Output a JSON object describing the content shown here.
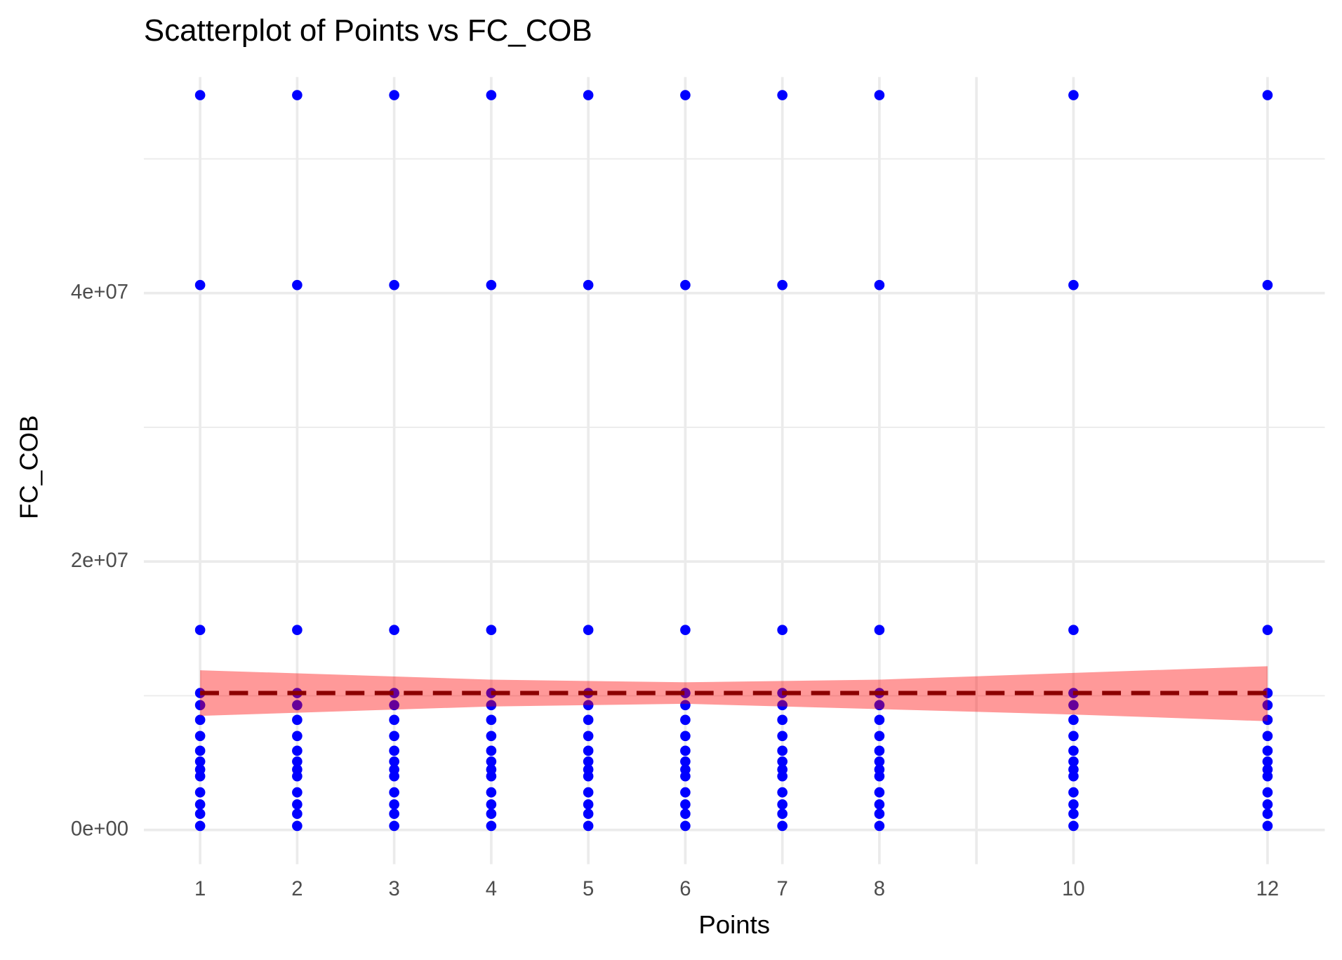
{
  "chart_data": {
    "type": "scatter",
    "title": "Scatterplot of Points vs  FC_COB",
    "x_label": "Points",
    "y_label": "FC_COB",
    "xlim": [
      0.42,
      12.59
    ],
    "ylim": [
      -2550000,
      56100000
    ],
    "xticks": [
      1,
      2,
      3,
      4,
      5,
      6,
      7,
      8,
      10,
      12
    ],
    "x_minor_grid": [
      9
    ],
    "yticks": [
      {
        "value": 0,
        "label": "0e+00"
      },
      {
        "value": 20000000,
        "label": "2e+07"
      },
      {
        "value": 40000000,
        "label": "4e+07"
      }
    ],
    "y_minor_grid": [
      10000000,
      30000000,
      50000000
    ],
    "grid": true,
    "series": [
      {
        "color": "#0000ff",
        "x": [
          1,
          1,
          1,
          1,
          1,
          1,
          1,
          1,
          1,
          1,
          1,
          1,
          1,
          1,
          1,
          2,
          2,
          2,
          2,
          2,
          2,
          2,
          2,
          2,
          2,
          2,
          2,
          2,
          2,
          2,
          3,
          3,
          3,
          3,
          3,
          3,
          3,
          3,
          3,
          3,
          3,
          3,
          3,
          3,
          3,
          4,
          4,
          4,
          4,
          4,
          4,
          4,
          4,
          4,
          4,
          4,
          4,
          4,
          4,
          4,
          5,
          5,
          5,
          5,
          5,
          5,
          5,
          5,
          5,
          5,
          5,
          5,
          5,
          5,
          5,
          6,
          6,
          6,
          6,
          6,
          6,
          6,
          6,
          6,
          6,
          6,
          6,
          6,
          6,
          6,
          7,
          7,
          7,
          7,
          7,
          7,
          7,
          7,
          7,
          7,
          7,
          7,
          7,
          7,
          7,
          8,
          8,
          8,
          8,
          8,
          8,
          8,
          8,
          8,
          8,
          8,
          8,
          8,
          8,
          8,
          10,
          10,
          10,
          10,
          10,
          10,
          10,
          10,
          10,
          10,
          10,
          10,
          10,
          10,
          10,
          12,
          12,
          12,
          12,
          12,
          12,
          12,
          12,
          12,
          12,
          12,
          12,
          12,
          12,
          12
        ],
        "values": [
          54750000,
          40600000,
          14900000,
          10200000,
          9300000,
          8200000,
          7000000,
          5900000,
          5100000,
          4500000,
          4000000,
          2800000,
          1900000,
          1200000,
          300000,
          54750000,
          40600000,
          14900000,
          10200000,
          9300000,
          8200000,
          7000000,
          5900000,
          5100000,
          4500000,
          4000000,
          2800000,
          1900000,
          1200000,
          300000,
          54750000,
          40600000,
          14900000,
          10200000,
          9300000,
          8200000,
          7000000,
          5900000,
          5100000,
          4500000,
          4000000,
          2800000,
          1900000,
          1200000,
          300000,
          54750000,
          40600000,
          14900000,
          10200000,
          9300000,
          8200000,
          7000000,
          5900000,
          5100000,
          4500000,
          4000000,
          2800000,
          1900000,
          1200000,
          300000,
          54750000,
          40600000,
          14900000,
          10200000,
          9300000,
          8200000,
          7000000,
          5900000,
          5100000,
          4500000,
          4000000,
          2800000,
          1900000,
          1200000,
          300000,
          54750000,
          40600000,
          14900000,
          10200000,
          9300000,
          8200000,
          7000000,
          5900000,
          5100000,
          4500000,
          4000000,
          2800000,
          1900000,
          1200000,
          300000,
          54750000,
          40600000,
          14900000,
          10200000,
          9300000,
          8200000,
          7000000,
          5900000,
          5100000,
          4500000,
          4000000,
          2800000,
          1900000,
          1200000,
          300000,
          54750000,
          40600000,
          14900000,
          10200000,
          9300000,
          8200000,
          7000000,
          5900000,
          5100000,
          4500000,
          4000000,
          2800000,
          1900000,
          1200000,
          300000,
          54750000,
          40600000,
          14900000,
          10200000,
          9300000,
          8200000,
          7000000,
          5900000,
          5100000,
          4500000,
          4000000,
          2800000,
          1900000,
          1200000,
          300000,
          54750000,
          40600000,
          14900000,
          10200000,
          9300000,
          8200000,
          7000000,
          5900000,
          5100000,
          4500000,
          4000000,
          2800000,
          1900000,
          1200000,
          300000
        ]
      }
    ],
    "fit": {
      "color": "#8b0000",
      "band_color": "#ff0000",
      "x": [
        1,
        4,
        6,
        8,
        10,
        12
      ],
      "values": [
        10200000,
        10200000,
        10200000,
        10200000,
        10200000,
        10200000
      ],
      "upper": [
        11900000,
        11200000,
        11000000,
        11200000,
        11700000,
        12200000
      ],
      "lower": [
        8500000,
        9200000,
        9400000,
        9000000,
        8600000,
        8100000
      ]
    }
  }
}
